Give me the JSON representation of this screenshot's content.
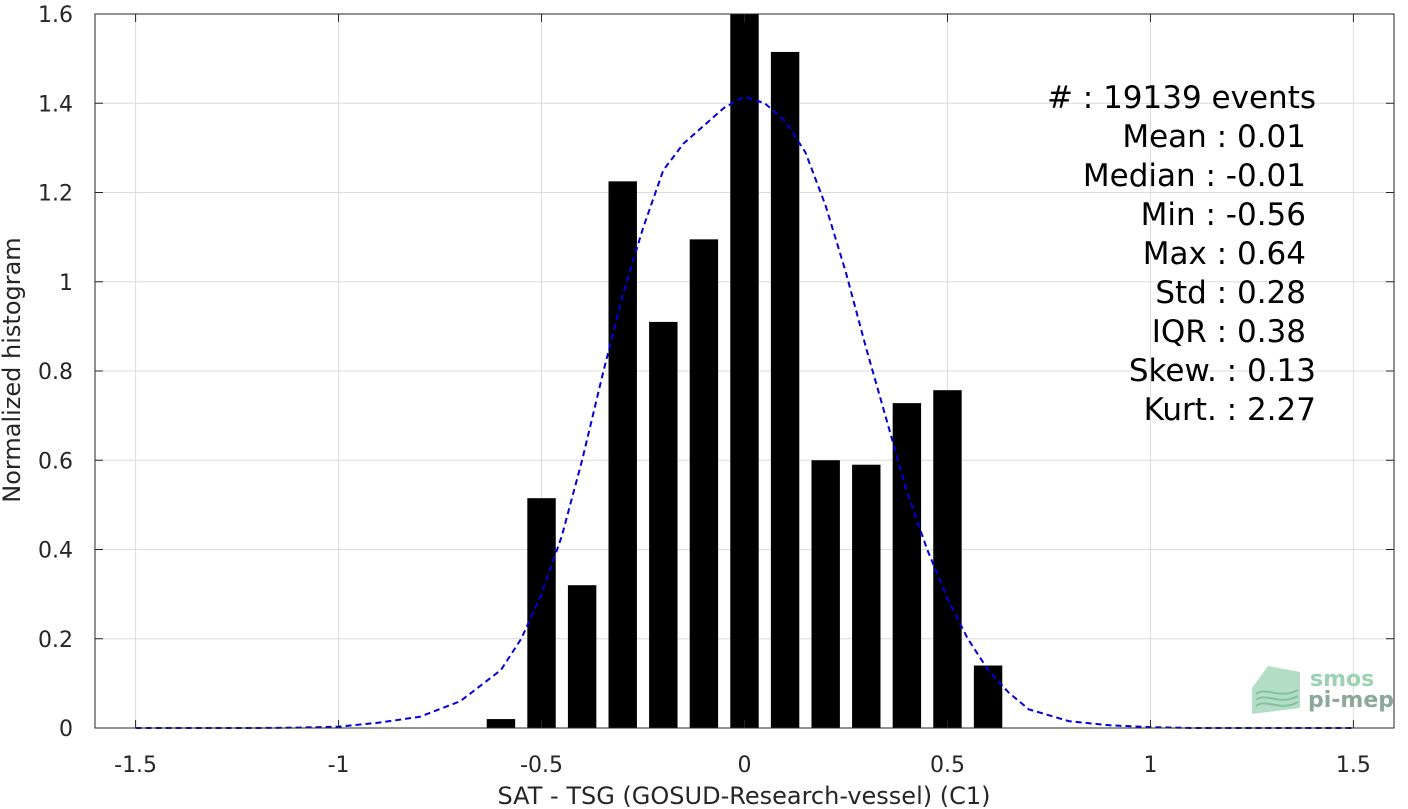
{
  "chart_data": {
    "type": "bar",
    "xlabel": "SAT - TSG (GOSUD-Research-vessel) (C1)",
    "ylabel": "Normalized histogram",
    "xlim": [
      -1.6,
      1.6
    ],
    "ylim": [
      0,
      1.6
    ],
    "grid": true,
    "xticks": [
      -1.5,
      -1,
      -0.5,
      0,
      0.5,
      1,
      1.5
    ],
    "xtick_labels": [
      "-1.5",
      "-1",
      "-0.5",
      "0",
      "0.5",
      "1",
      "1.5"
    ],
    "yticks": [
      0,
      0.2,
      0.4,
      0.6,
      0.8,
      1,
      1.2,
      1.4,
      1.6
    ],
    "ytick_labels": [
      "0",
      "0.2",
      "0.4",
      "0.6",
      "0.8",
      "1",
      "1.2",
      "1.4",
      "1.6"
    ],
    "bar_width": 0.07,
    "bars": {
      "x": [
        -0.6,
        -0.5,
        -0.4,
        -0.3,
        -0.2,
        -0.1,
        0.0,
        0.1,
        0.2,
        0.3,
        0.4,
        0.5,
        0.6
      ],
      "values": [
        0.02,
        0.515,
        0.32,
        1.225,
        0.91,
        1.095,
        1.6,
        1.515,
        0.6,
        0.59,
        0.728,
        0.757,
        0.14
      ],
      "color": "#000000"
    },
    "fit_curve": {
      "style": "dashed",
      "color": "#0000dd",
      "x": [
        -1.5,
        -1.4,
        -1.3,
        -1.2,
        -1.1,
        -1.0,
        -0.9,
        -0.8,
        -0.7,
        -0.6,
        -0.55,
        -0.5,
        -0.45,
        -0.4,
        -0.35,
        -0.3,
        -0.25,
        -0.2,
        -0.15,
        -0.1,
        -0.05,
        0.0,
        0.05,
        0.1,
        0.15,
        0.2,
        0.25,
        0.3,
        0.35,
        0.4,
        0.45,
        0.5,
        0.55,
        0.6,
        0.65,
        0.7,
        0.8,
        0.9,
        1.0,
        1.1,
        1.2,
        1.3,
        1.4,
        1.5
      ],
      "y": [
        0.0,
        0.0,
        0.0,
        0.0,
        0.001,
        0.003,
        0.012,
        0.025,
        0.06,
        0.13,
        0.2,
        0.3,
        0.43,
        0.6,
        0.79,
        0.97,
        1.12,
        1.25,
        1.31,
        1.35,
        1.39,
        1.415,
        1.4,
        1.36,
        1.29,
        1.17,
        1.02,
        0.85,
        0.69,
        0.53,
        0.4,
        0.29,
        0.2,
        0.13,
        0.08,
        0.042,
        0.015,
        0.006,
        0.002,
        0.0,
        0.0,
        0.0,
        0.0,
        0.0
      ]
    },
    "stats": {
      "events": "#  : 19139 events",
      "mean": "Mean : 0.01",
      "median": "Median : -0.01",
      "min": "Min : -0.56",
      "max": "Max : 0.64",
      "std": "Std : 0.28",
      "iqr": "IQR : 0.38",
      "skew": "Skew. : 0.13",
      "kurt": "Kurt. : 2.27"
    }
  },
  "logo": {
    "line1": "smos",
    "line2": "pi-mep",
    "color": "#7fbf9a"
  }
}
